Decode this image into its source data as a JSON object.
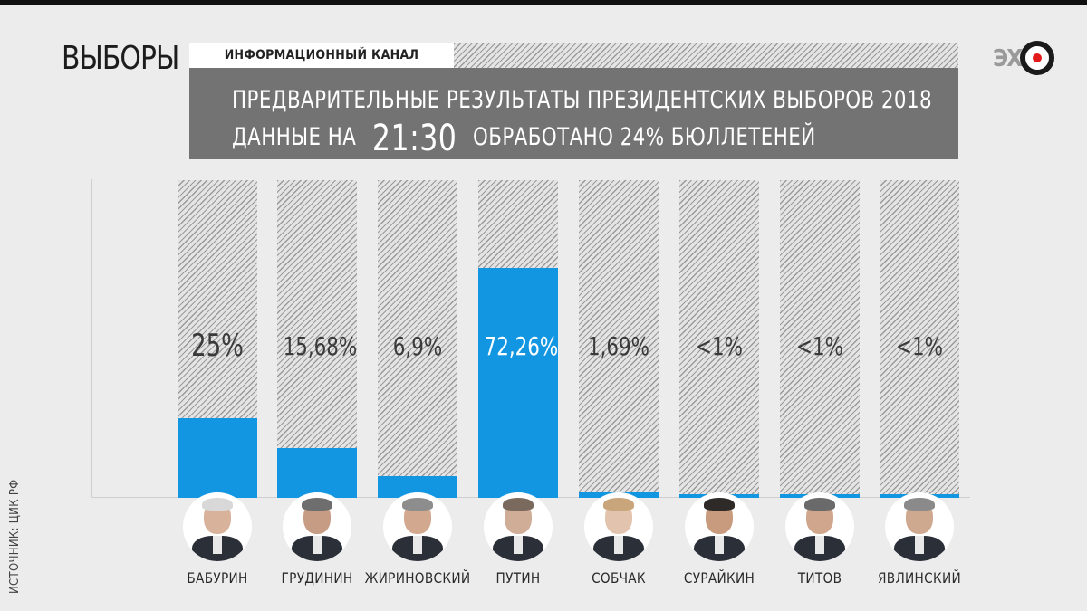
{
  "header": {
    "brand": "ВЫБОРЫ",
    "channel_label": "ИНФОРМАЦИОННЫЙ КАНАЛ",
    "headline_line1": "ПРЕДВАРИТЕЛЬНЫЕ РЕЗУЛЬТАТЫ ПРЕЗИДЕНТСКИХ ВЫБОРОВ 2018",
    "headline_line2_prefix": "ДАННЫЕ НА",
    "headline_time": "21:30",
    "headline_line2_suffix": "ОБРАБОТАНО 24% БЮЛЛЕТЕНЕЙ",
    "logo_text": "ЭХ"
  },
  "source": "ИСТОЧНИК: ЦИК РФ",
  "colors": {
    "bar": "#1396e2",
    "headline_bg": "#737373",
    "background": "#ececec"
  },
  "chart_data": {
    "type": "bar",
    "title": "ПРЕДВАРИТЕЛЬНЫЕ РЕЗУЛЬТАТЫ ПРЕЗИДЕНТСКИХ ВЫБОРОВ 2018",
    "categories": [
      "БАБУРИН",
      "ГРУДИНИН",
      "ЖИРИНОВСКИЙ",
      "ПУТИН",
      "СОБЧАК",
      "СУРАЙКИН",
      "ТИТОВ",
      "ЯВЛИНСКИЙ"
    ],
    "value_labels": [
      "25%",
      "15,68%",
      "6,9%",
      "72,26%",
      "1,69%",
      "<1%",
      "<1%",
      "<1%"
    ],
    "values": [
      25,
      15.68,
      6.9,
      72.26,
      1.69,
      0.5,
      0.5,
      0.5
    ],
    "ylim": [
      0,
      100
    ],
    "grid": false,
    "legend": "none"
  }
}
